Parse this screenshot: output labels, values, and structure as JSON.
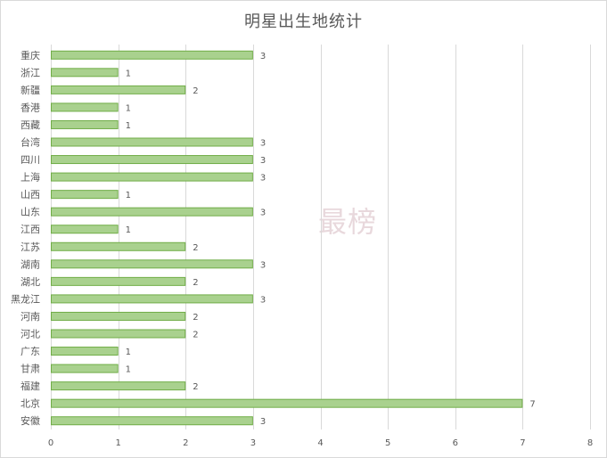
{
  "chart_data": {
    "type": "bar",
    "orientation": "horizontal",
    "title": "明星出生地统计",
    "watermark": "最榜",
    "categories": [
      "重庆",
      "浙江",
      "新疆",
      "香港",
      "西藏",
      "台湾",
      "四川",
      "上海",
      "山西",
      "山东",
      "江西",
      "江苏",
      "湖南",
      "湖北",
      "黑龙江",
      "河南",
      "河北",
      "广东",
      "甘肃",
      "福建",
      "北京",
      "安徽"
    ],
    "values": [
      3,
      1,
      2,
      1,
      1,
      3,
      3,
      3,
      1,
      3,
      1,
      2,
      3,
      2,
      3,
      2,
      2,
      1,
      1,
      2,
      7,
      3
    ],
    "xlim": [
      0,
      8
    ],
    "xticks": [
      0,
      1,
      2,
      3,
      4,
      5,
      6,
      7,
      8
    ],
    "grid": true,
    "data_labels": true,
    "legend": "none",
    "colors": {
      "bar_fill": "#a9d18e",
      "bar_stroke": "#70ad47",
      "grid": "#d9d9d9",
      "text": "#595959"
    }
  }
}
